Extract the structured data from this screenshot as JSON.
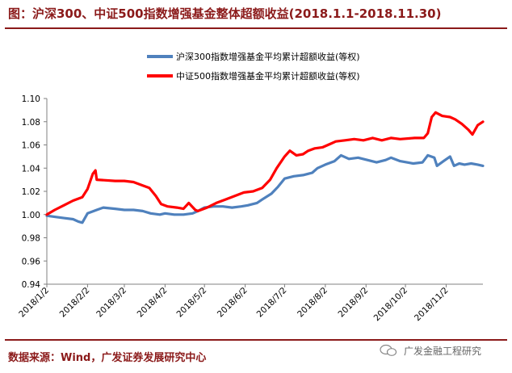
{
  "header": {
    "title": "图：沪深300、中证500指数增强基金整体超额收益(2018.1.1-2018.11.30)"
  },
  "footer": {
    "source": "数据来源：Wind，广发证券发展研究中心",
    "watermark": "广发金融工程研究"
  },
  "chart_data": {
    "type": "line",
    "ylim": [
      0.94,
      1.1
    ],
    "yticks": [
      "0.94",
      "0.96",
      "0.98",
      "1.00",
      "1.02",
      "1.04",
      "1.06",
      "1.08",
      "1.10"
    ],
    "xticks": [
      "2018/1/2",
      "2018/2/2",
      "2018/3/2",
      "2018/4/2",
      "2018/5/2",
      "2018/6/2",
      "2018/7/2",
      "2018/8/2",
      "2018/9/2",
      "2018/10/2",
      "2018/11/2"
    ],
    "legend_position": "top-center",
    "grid": false,
    "series": [
      {
        "name": "沪深300指数增强基金平均累计超额收益(等权)",
        "color": "#4f81bd",
        "points": [
          [
            "2018/1/2",
            0.999
          ],
          [
            "2018/1/8",
            0.998
          ],
          [
            "2018/1/15",
            0.997
          ],
          [
            "2018/1/22",
            0.996
          ],
          [
            "2018/1/26",
            0.994
          ],
          [
            "2018/1/29",
            0.993
          ],
          [
            "2018/2/2",
            1.001
          ],
          [
            "2018/2/9",
            1.004
          ],
          [
            "2018/2/14",
            1.006
          ],
          [
            "2018/2/23",
            1.005
          ],
          [
            "2018/3/2",
            1.004
          ],
          [
            "2018/3/9",
            1.004
          ],
          [
            "2018/3/16",
            1.003
          ],
          [
            "2018/3/22",
            1.001
          ],
          [
            "2018/3/29",
            1.0
          ],
          [
            "2018/4/2",
            1.001
          ],
          [
            "2018/4/9",
            1.0
          ],
          [
            "2018/4/16",
            1.0
          ],
          [
            "2018/4/23",
            1.001
          ],
          [
            "2018/4/27",
            1.003
          ],
          [
            "2018/5/2",
            1.006
          ],
          [
            "2018/5/9",
            1.007
          ],
          [
            "2018/5/16",
            1.007
          ],
          [
            "2018/5/23",
            1.006
          ],
          [
            "2018/5/30",
            1.007
          ],
          [
            "2018/6/4",
            1.008
          ],
          [
            "2018/6/11",
            1.01
          ],
          [
            "2018/6/15",
            1.013
          ],
          [
            "2018/6/22",
            1.018
          ],
          [
            "2018/6/27",
            1.024
          ],
          [
            "2018/7/2",
            1.031
          ],
          [
            "2018/7/9",
            1.033
          ],
          [
            "2018/7/16",
            1.034
          ],
          [
            "2018/7/23",
            1.036
          ],
          [
            "2018/7/27",
            1.04
          ],
          [
            "2018/8/2",
            1.043
          ],
          [
            "2018/8/9",
            1.046
          ],
          [
            "2018/8/14",
            1.051
          ],
          [
            "2018/8/20",
            1.048
          ],
          [
            "2018/8/27",
            1.049
          ],
          [
            "2018/9/3",
            1.047
          ],
          [
            "2018/9/10",
            1.045
          ],
          [
            "2018/9/17",
            1.047
          ],
          [
            "2018/9/21",
            1.049
          ],
          [
            "2018/9/28",
            1.046
          ],
          [
            "2018/10/8",
            1.044
          ],
          [
            "2018/10/15",
            1.045
          ],
          [
            "2018/10/19",
            1.051
          ],
          [
            "2018/10/24",
            1.049
          ],
          [
            "2018/10/26",
            1.042
          ],
          [
            "2018/10/31",
            1.046
          ],
          [
            "2018/11/5",
            1.05
          ],
          [
            "2018/11/8",
            1.042
          ],
          [
            "2018/11/12",
            1.044
          ],
          [
            "2018/11/16",
            1.043
          ],
          [
            "2018/11/21",
            1.044
          ],
          [
            "2018/11/26",
            1.043
          ],
          [
            "2018/11/30",
            1.042
          ]
        ]
      },
      {
        "name": "中证500指数增强基金平均累计超额收益(等权)",
        "color": "#ff0000",
        "points": [
          [
            "2018/1/2",
            1.0
          ],
          [
            "2018/1/8",
            1.004
          ],
          [
            "2018/1/15",
            1.008
          ],
          [
            "2018/1/22",
            1.012
          ],
          [
            "2018/1/29",
            1.015
          ],
          [
            "2018/2/2",
            1.022
          ],
          [
            "2018/2/6",
            1.035
          ],
          [
            "2018/2/8",
            1.038
          ],
          [
            "2018/2/9",
            1.03
          ],
          [
            "2018/2/23",
            1.029
          ],
          [
            "2018/3/2",
            1.029
          ],
          [
            "2018/3/9",
            1.028
          ],
          [
            "2018/3/16",
            1.025
          ],
          [
            "2018/3/21",
            1.023
          ],
          [
            "2018/3/26",
            1.016
          ],
          [
            "2018/3/30",
            1.009
          ],
          [
            "2018/4/4",
            1.007
          ],
          [
            "2018/4/11",
            1.006
          ],
          [
            "2018/4/16",
            1.005
          ],
          [
            "2018/4/20",
            1.01
          ],
          [
            "2018/4/25",
            1.004
          ],
          [
            "2018/4/27",
            1.003
          ],
          [
            "2018/5/4",
            1.006
          ],
          [
            "2018/5/11",
            1.01
          ],
          [
            "2018/5/18",
            1.013
          ],
          [
            "2018/5/25",
            1.016
          ],
          [
            "2018/6/1",
            1.019
          ],
          [
            "2018/6/8",
            1.02
          ],
          [
            "2018/6/15",
            1.023
          ],
          [
            "2018/6/21",
            1.03
          ],
          [
            "2018/6/26",
            1.04
          ],
          [
            "2018/7/2",
            1.05
          ],
          [
            "2018/7/6",
            1.055
          ],
          [
            "2018/7/11",
            1.051
          ],
          [
            "2018/7/16",
            1.052
          ],
          [
            "2018/7/20",
            1.055
          ],
          [
            "2018/7/25",
            1.057
          ],
          [
            "2018/7/31",
            1.058
          ],
          [
            "2018/8/6",
            1.061
          ],
          [
            "2018/8/10",
            1.063
          ],
          [
            "2018/8/17",
            1.064
          ],
          [
            "2018/8/24",
            1.065
          ],
          [
            "2018/8/31",
            1.064
          ],
          [
            "2018/9/7",
            1.066
          ],
          [
            "2018/9/14",
            1.064
          ],
          [
            "2018/9/21",
            1.066
          ],
          [
            "2018/9/28",
            1.065
          ],
          [
            "2018/10/9",
            1.066
          ],
          [
            "2018/10/16",
            1.066
          ],
          [
            "2018/10/19",
            1.07
          ],
          [
            "2018/10/22",
            1.084
          ],
          [
            "2018/10/25",
            1.088
          ],
          [
            "2018/10/30",
            1.085
          ],
          [
            "2018/11/5",
            1.084
          ],
          [
            "2018/11/9",
            1.082
          ],
          [
            "2018/11/14",
            1.078
          ],
          [
            "2018/11/19",
            1.073
          ],
          [
            "2018/11/22",
            1.069
          ],
          [
            "2018/11/26",
            1.077
          ],
          [
            "2018/11/30",
            1.08
          ]
        ]
      }
    ]
  }
}
